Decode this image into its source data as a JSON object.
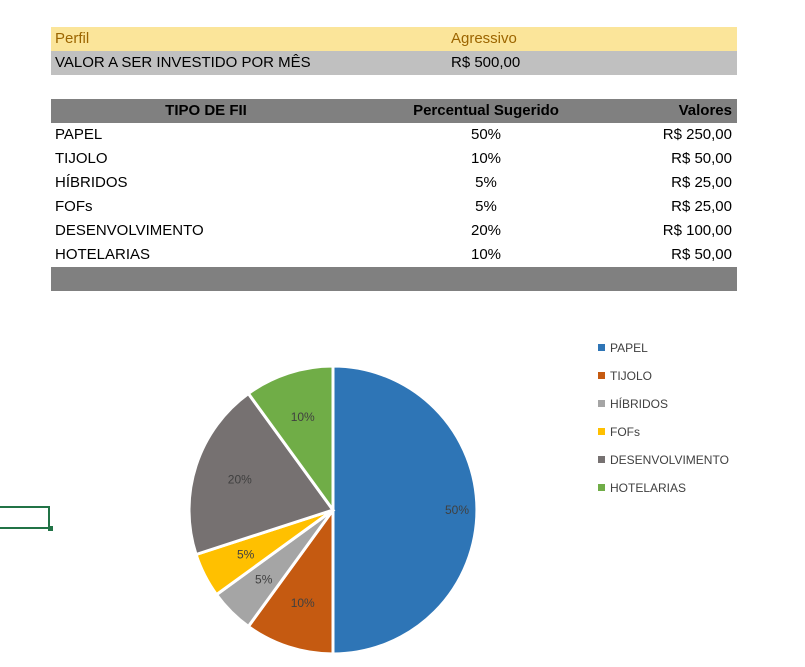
{
  "summary": {
    "perfil_label": "Perfil",
    "perfil_value": "Agressivo",
    "valor_label": "VALOR A SER INVESTIDO POR MÊS",
    "valor_value": "R$ 500,00"
  },
  "table": {
    "headers": [
      "TIPO DE FII",
      "Percentual Sugerido",
      "Valores"
    ],
    "rows": [
      {
        "tipo": "PAPEL",
        "percentual": "50%",
        "valor": "R$ 250,00"
      },
      {
        "tipo": "TIJOLO",
        "percentual": "10%",
        "valor": "R$ 50,00"
      },
      {
        "tipo": "HÍBRIDOS",
        "percentual": "5%",
        "valor": "R$ 25,00"
      },
      {
        "tipo": "FOFs",
        "percentual": "5%",
        "valor": "R$ 25,00"
      },
      {
        "tipo": "DESENVOLVIMENTO",
        "percentual": "20%",
        "valor": "R$ 100,00"
      },
      {
        "tipo": "HOTELARIAS",
        "percentual": "10%",
        "valor": "R$ 50,00"
      }
    ]
  },
  "chart_data": {
    "type": "pie",
    "title": "",
    "categories": [
      "PAPEL",
      "TIJOLO",
      "HÍBRIDOS",
      "FOFs",
      "DESENVOLVIMENTO",
      "HOTELARIAS"
    ],
    "values": [
      50,
      10,
      5,
      5,
      20,
      10
    ],
    "data_labels": [
      "50%",
      "10%",
      "5%",
      "5%",
      "20%",
      "10%"
    ],
    "colors": [
      "#2e75b6",
      "#c55a11",
      "#a5a5a5",
      "#ffc000",
      "#767171",
      "#70ad47"
    ],
    "legend_position": "right",
    "start_angle": "12 o'clock, clockwise"
  }
}
